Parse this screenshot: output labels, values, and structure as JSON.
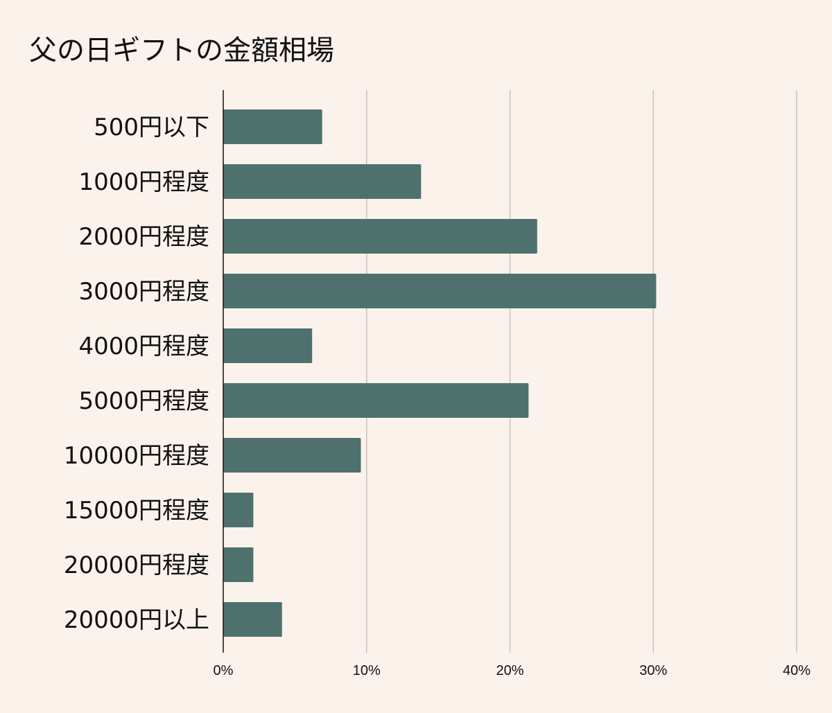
{
  "chart_data": {
    "type": "bar",
    "orientation": "horizontal",
    "title": "父の日ギフトの金額相場",
    "categories": [
      "500円以下",
      "1000円程度",
      "2000円程度",
      "3000円程度",
      "4000円程度",
      "5000円程度",
      "10000円程度",
      "15000円程度",
      "20000円程度",
      "20000円以上"
    ],
    "values": [
      6.9,
      13.8,
      21.9,
      30.2,
      6.2,
      21.3,
      9.6,
      2.1,
      2.1,
      4.1
    ],
    "value_unit": "%",
    "xlim": [
      0,
      40
    ],
    "x_ticks": [
      0,
      10,
      20,
      30,
      40
    ],
    "x_tick_labels": [
      "0%",
      "10%",
      "20%",
      "30%",
      "40%"
    ],
    "grid": "vertical",
    "legend": "none",
    "colors": {
      "bar": "#4e716d",
      "background": "#fbf2ec",
      "grid": "#c8c0bb",
      "axis": "#111111"
    }
  }
}
